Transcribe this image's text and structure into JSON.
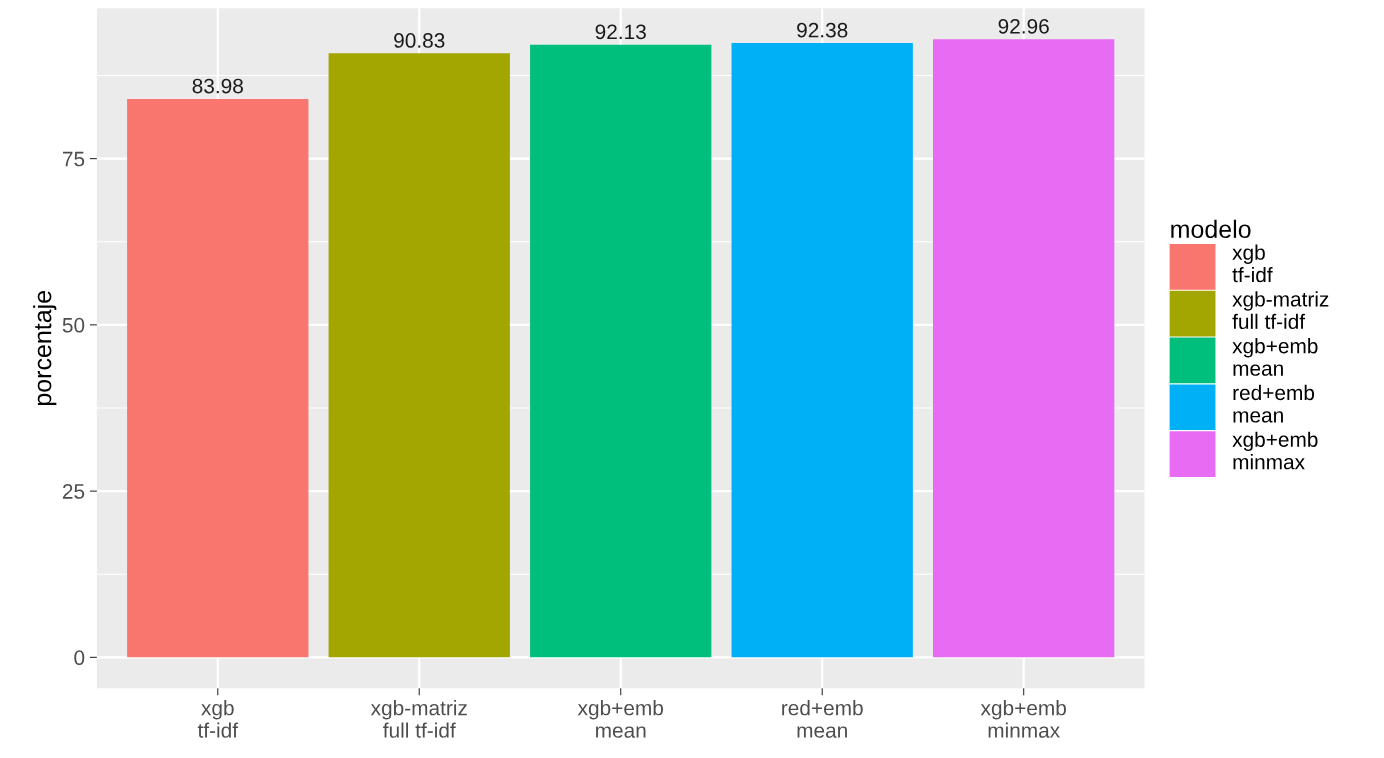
{
  "chart_data": {
    "type": "bar",
    "ylabel": "porcentaje",
    "legend_title": "modelo",
    "categories": [
      "xgb\ntf-idf",
      "xgb-matriz\nfull tf-idf",
      "xgb+emb\nmean",
      "red+emb\nmean",
      "xgb+emb\nminmax"
    ],
    "series": [
      {
        "name": "xgb\ntf-idf",
        "color": "#f8766d",
        "values": [
          83.98,
          null,
          null,
          null,
          null
        ]
      },
      {
        "name": "xgb-matriz\nfull tf-idf",
        "color": "#a3a500",
        "values": [
          null,
          90.83,
          null,
          null,
          null
        ]
      },
      {
        "name": "xgb+emb\nmean",
        "color": "#00bf7d",
        "values": [
          null,
          null,
          92.13,
          null,
          null
        ]
      },
      {
        "name": "red+emb\nmean",
        "color": "#00b0f6",
        "values": [
          null,
          null,
          null,
          92.38,
          null
        ]
      },
      {
        "name": "xgb+emb\nminmax",
        "color": "#e76bf3",
        "values": [
          null,
          null,
          null,
          null,
          92.96
        ]
      }
    ],
    "ylim": [
      -4.65,
      97.6
    ],
    "yticks": [
      0,
      {
        "value": 12.5,
        "label": null
      },
      25,
      {
        "value": 37.5,
        "label": null
      },
      50,
      {
        "value": 62.5,
        "label": null
      },
      75,
      {
        "value": 87.5,
        "label": null
      }
    ],
    "grid": true,
    "legend": "right",
    "data_labels": true
  }
}
